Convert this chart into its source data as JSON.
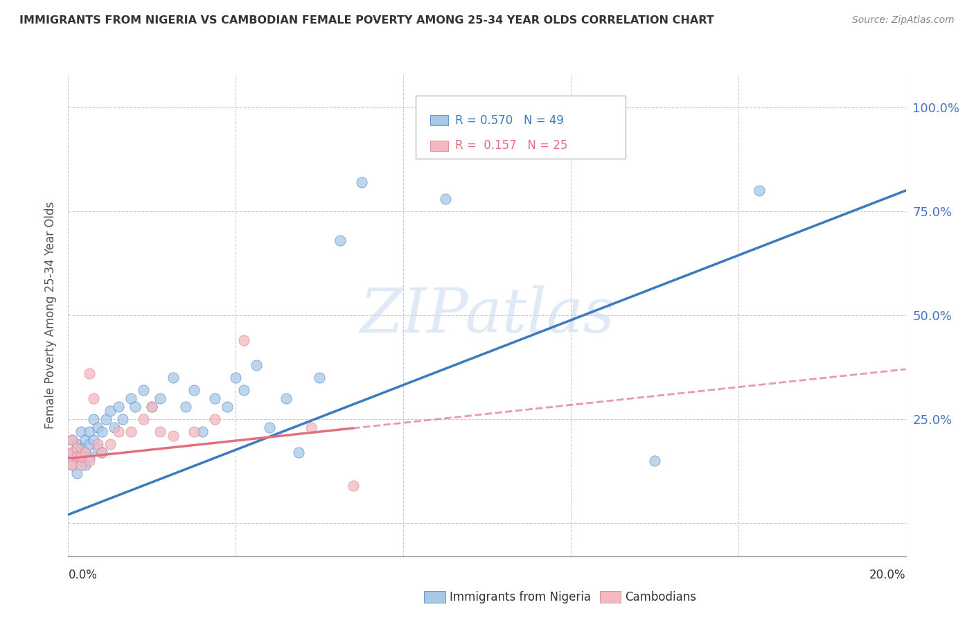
{
  "title": "IMMIGRANTS FROM NIGERIA VS CAMBODIAN FEMALE POVERTY AMONG 25-34 YEAR OLDS CORRELATION CHART",
  "source": "Source: ZipAtlas.com",
  "ylabel": "Female Poverty Among 25-34 Year Olds",
  "watermark": "ZIPatlas",
  "nigeria_color": "#a8c8e8",
  "cambodian_color": "#f4b8c0",
  "nigeria_line_color": "#3a7abf",
  "cambodian_line_color": "#e07080",
  "legend_box_color": "#aaaaaa",
  "grid_color": "#cccccc",
  "ytick_color": "#4472c4",
  "ytick_positions": [
    0.0,
    0.25,
    0.5,
    0.75,
    1.0
  ],
  "ytick_labels": [
    "",
    "25.0%",
    "50.0%",
    "75.0%",
    "100.0%"
  ],
  "xmin": 0.0,
  "xmax": 0.2,
  "ymin": -0.08,
  "ymax": 1.08,
  "nigeria_points_x": [
    0.001,
    0.001,
    0.001,
    0.002,
    0.002,
    0.002,
    0.003,
    0.003,
    0.003,
    0.004,
    0.004,
    0.004,
    0.005,
    0.005,
    0.005,
    0.006,
    0.006,
    0.007,
    0.007,
    0.008,
    0.008,
    0.009,
    0.01,
    0.011,
    0.012,
    0.013,
    0.015,
    0.016,
    0.018,
    0.02,
    0.022,
    0.025,
    0.028,
    0.03,
    0.032,
    0.035,
    0.038,
    0.04,
    0.042,
    0.045,
    0.048,
    0.052,
    0.055,
    0.06,
    0.065,
    0.07,
    0.09,
    0.14,
    0.165
  ],
  "nigeria_points_y": [
    0.17,
    0.14,
    0.2,
    0.16,
    0.12,
    0.19,
    0.18,
    0.15,
    0.22,
    0.17,
    0.2,
    0.14,
    0.19,
    0.16,
    0.22,
    0.2,
    0.25,
    0.23,
    0.18,
    0.22,
    0.17,
    0.25,
    0.27,
    0.23,
    0.28,
    0.25,
    0.3,
    0.28,
    0.32,
    0.28,
    0.3,
    0.35,
    0.28,
    0.32,
    0.22,
    0.3,
    0.28,
    0.35,
    0.32,
    0.38,
    0.23,
    0.3,
    0.17,
    0.35,
    0.68,
    0.82,
    0.78,
    0.15,
    0.8
  ],
  "cambodian_points_x": [
    0.001,
    0.001,
    0.001,
    0.002,
    0.002,
    0.003,
    0.003,
    0.004,
    0.005,
    0.005,
    0.006,
    0.007,
    0.008,
    0.01,
    0.012,
    0.015,
    0.018,
    0.02,
    0.022,
    0.025,
    0.03,
    0.035,
    0.042,
    0.058,
    0.068
  ],
  "cambodian_points_y": [
    0.17,
    0.14,
    0.2,
    0.18,
    0.16,
    0.14,
    0.16,
    0.17,
    0.15,
    0.36,
    0.3,
    0.19,
    0.17,
    0.19,
    0.22,
    0.22,
    0.25,
    0.28,
    0.22,
    0.21,
    0.22,
    0.25,
    0.44,
    0.23,
    0.09
  ],
  "ng_line_x0": 0.0,
  "ng_line_y0": 0.02,
  "ng_line_x1": 0.2,
  "ng_line_y1": 0.8,
  "cam_line_x0": 0.0,
  "cam_line_y0": 0.155,
  "cam_line_x1": 0.2,
  "cam_line_y1": 0.37
}
